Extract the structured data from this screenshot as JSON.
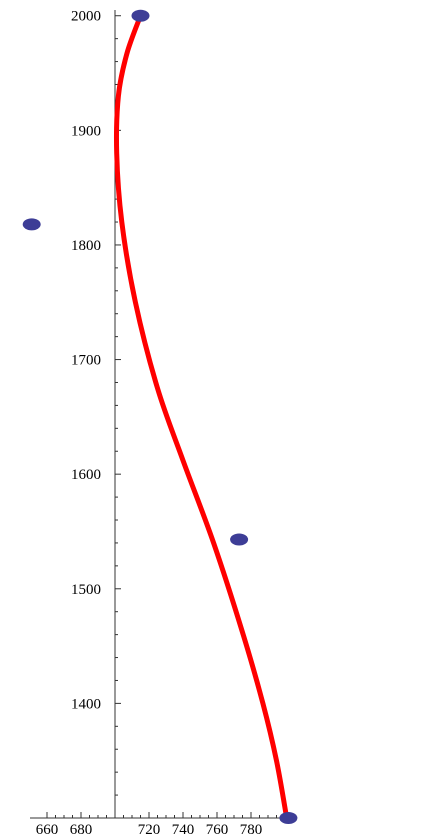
{
  "chart_data": {
    "type": "scatter",
    "title": "",
    "xlabel": "",
    "ylabel": "",
    "xlim": [
      650,
      800
    ],
    "ylim": [
      1300,
      2005
    ],
    "grid": false,
    "axes_origin": {
      "x": 700,
      "y": 1300
    },
    "x_ticks": [
      660,
      680,
      720,
      740,
      760,
      780
    ],
    "x_tick_labels": [
      "660",
      "680",
      "720",
      "740",
      "760",
      "780"
    ],
    "y_ticks": [
      1400,
      1500,
      1600,
      1700,
      1800,
      1900,
      2000
    ],
    "y_tick_labels": [
      "1400",
      "1500",
      "1600",
      "1700",
      "1800",
      "1900",
      "2000"
    ],
    "series": [
      {
        "kind": "points",
        "color": "#3d3d96",
        "points": [
          {
            "x": 715,
            "y": 2000
          },
          {
            "x": 651,
            "y": 1818
          },
          {
            "x": 773,
            "y": 1543
          },
          {
            "x": 802,
            "y": 1300
          }
        ]
      },
      {
        "kind": "curve",
        "color": "#ff0000",
        "points": [
          {
            "x": 715,
            "y": 2000
          },
          {
            "x": 707,
            "y": 1967
          },
          {
            "x": 702,
            "y": 1930
          },
          {
            "x": 701,
            "y": 1880
          },
          {
            "x": 704,
            "y": 1820
          },
          {
            "x": 712,
            "y": 1750
          },
          {
            "x": 725,
            "y": 1675
          },
          {
            "x": 740,
            "y": 1612
          },
          {
            "x": 758,
            "y": 1540
          },
          {
            "x": 775,
            "y": 1462
          },
          {
            "x": 787,
            "y": 1400
          },
          {
            "x": 795,
            "y": 1350
          },
          {
            "x": 801,
            "y": 1300
          }
        ]
      }
    ]
  }
}
